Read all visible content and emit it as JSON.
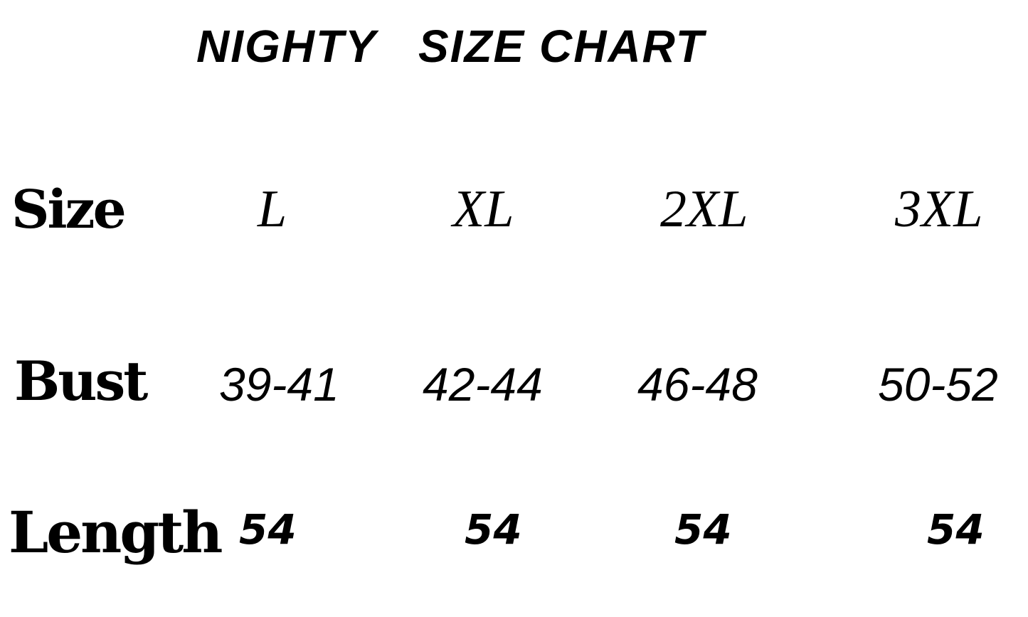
{
  "title": "NIGHTY   SIZE CHART",
  "rows": {
    "size": {
      "label": "Size",
      "values": [
        "L",
        "XL",
        "2XL",
        "3XL"
      ]
    },
    "bust": {
      "label": "Bust",
      "values": [
        "39-41",
        "42-44",
        "46-48",
        "50-52"
      ]
    },
    "length": {
      "label": "Length",
      "values": [
        "54",
        "54",
        "54",
        "54"
      ]
    }
  }
}
